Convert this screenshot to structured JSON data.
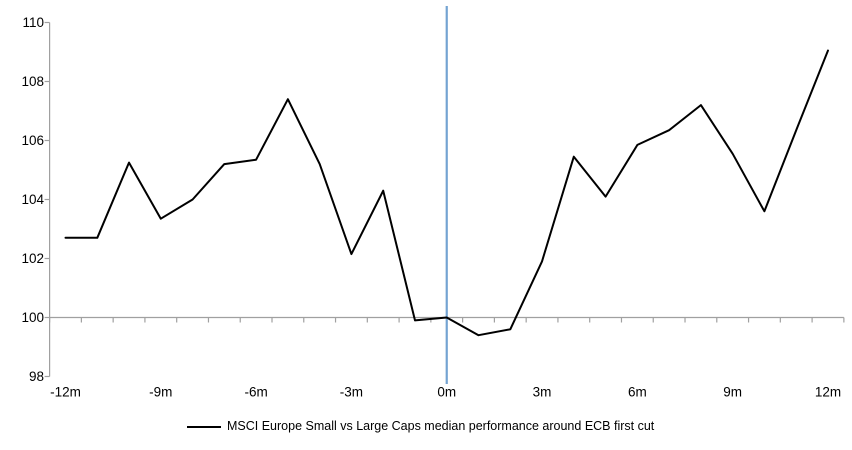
{
  "chart_data": {
    "type": "line",
    "x_categories": [
      "-12m",
      "-11m",
      "-10m",
      "-9m",
      "-8m",
      "-7m",
      "-6m",
      "-5m",
      "-4m",
      "-3m",
      "-2m",
      "-1m",
      "0m",
      "1m",
      "2m",
      "3m",
      "4m",
      "5m",
      "6m",
      "7m",
      "8m",
      "9m",
      "10m",
      "11m",
      "12m"
    ],
    "x_axis_labels_shown": [
      "-12m",
      "-9m",
      "-6m",
      "-3m",
      "0m",
      "3m",
      "6m",
      "9m",
      "12m"
    ],
    "x_label_every": 3,
    "series": [
      {
        "name": "MSCI Europe Small vs Large Caps median performance around ECB first cut",
        "color": "#000000",
        "values": [
          102.7,
          102.7,
          105.25,
          103.35,
          104.0,
          105.2,
          105.35,
          107.4,
          105.2,
          102.15,
          104.3,
          99.9,
          100.0,
          99.4,
          99.6,
          101.9,
          105.45,
          104.1,
          105.85,
          106.35,
          107.2,
          105.55,
          103.6,
          106.35,
          109.05
        ]
      }
    ],
    "event_line": {
      "x_category": "0m",
      "color": "#74A3D2"
    },
    "baseline_value": 100,
    "ylim": [
      98,
      110
    ],
    "y_tick_step": 2,
    "y_tick_labels": [
      "98",
      "100",
      "102",
      "104",
      "106",
      "108",
      "110"
    ],
    "grid": "off",
    "axis_color": "#A0A0A0",
    "legend_position": "bottom-center"
  }
}
